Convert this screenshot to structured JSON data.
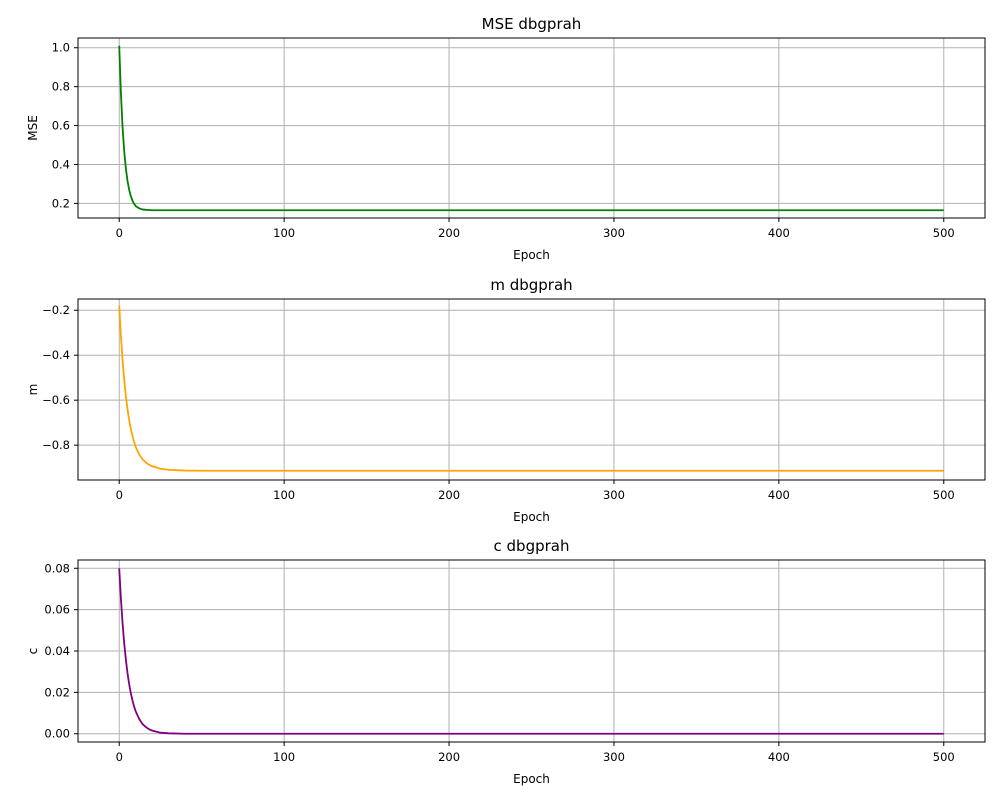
{
  "chart_data": [
    {
      "type": "line",
      "title": "MSE dbgprah",
      "xlabel": "Epoch",
      "ylabel": "MSE",
      "xlim": [
        -25,
        525
      ],
      "ylim": [
        0.125,
        1.05
      ],
      "xticks": [
        0,
        100,
        200,
        300,
        400,
        500
      ],
      "xtick_labels": [
        "0",
        "100",
        "200",
        "300",
        "400",
        "500"
      ],
      "yticks": [
        0.2,
        0.4,
        0.6,
        0.8,
        1.0
      ],
      "ytick_labels": [
        "0.2",
        "0.4",
        "0.6",
        "0.8",
        "1.0"
      ],
      "grid": true,
      "series": [
        {
          "color": "#008000",
          "x": [
            0,
            1,
            2,
            3,
            4,
            5,
            6,
            7,
            8,
            9,
            10,
            12,
            14,
            16,
            18,
            20,
            25,
            30,
            40,
            50,
            75,
            100,
            150,
            200,
            250,
            300,
            350,
            400,
            450,
            500
          ],
          "y": [
            1.01,
            0.77,
            0.595,
            0.47,
            0.381,
            0.317,
            0.271,
            0.238,
            0.215,
            0.198,
            0.186,
            0.175,
            0.169,
            0.167,
            0.166,
            0.165,
            0.165,
            0.165,
            0.165,
            0.165,
            0.165,
            0.165,
            0.165,
            0.165,
            0.165,
            0.165,
            0.165,
            0.165,
            0.165,
            0.165
          ]
        }
      ]
    },
    {
      "type": "line",
      "title": "m dbgprah",
      "xlabel": "Epoch",
      "ylabel": "m",
      "xlim": [
        -25,
        525
      ],
      "ylim": [
        -0.955,
        -0.15
      ],
      "xticks": [
        0,
        100,
        200,
        300,
        400,
        500
      ],
      "xtick_labels": [
        "0",
        "100",
        "200",
        "300",
        "400",
        "500"
      ],
      "yticks": [
        -0.8,
        -0.6,
        -0.4,
        -0.2
      ],
      "ytick_labels": [
        "−0.8",
        "−0.6",
        "−0.4",
        "−0.2"
      ],
      "grid": true,
      "series": [
        {
          "color": "#ffa500",
          "x": [
            0,
            1,
            2,
            3,
            4,
            5,
            6,
            7,
            8,
            9,
            10,
            12,
            14,
            16,
            18,
            20,
            25,
            30,
            40,
            50,
            75,
            100,
            150,
            200,
            250,
            300,
            350,
            400,
            450,
            500
          ],
          "y": [
            -0.18,
            -0.312,
            -0.42,
            -0.508,
            -0.58,
            -0.639,
            -0.687,
            -0.727,
            -0.759,
            -0.786,
            -0.808,
            -0.84,
            -0.862,
            -0.876,
            -0.887,
            -0.894,
            -0.905,
            -0.91,
            -0.913,
            -0.914,
            -0.914,
            -0.914,
            -0.914,
            -0.914,
            -0.914,
            -0.914,
            -0.914,
            -0.914,
            -0.914,
            -0.914
          ]
        }
      ]
    },
    {
      "type": "line",
      "title": "c dbgprah",
      "xlabel": "Epoch",
      "ylabel": "c",
      "xlim": [
        -25,
        525
      ],
      "ylim": [
        -0.004,
        0.084
      ],
      "xticks": [
        0,
        100,
        200,
        300,
        400,
        500
      ],
      "xtick_labels": [
        "0",
        "100",
        "200",
        "300",
        "400",
        "500"
      ],
      "yticks": [
        0.0,
        0.02,
        0.04,
        0.06,
        0.08
      ],
      "ytick_labels": [
        "0.00",
        "0.02",
        "0.04",
        "0.06",
        "0.08"
      ],
      "grid": true,
      "series": [
        {
          "color": "#800080",
          "x": [
            0,
            1,
            2,
            3,
            4,
            5,
            6,
            7,
            8,
            9,
            10,
            12,
            14,
            16,
            18,
            20,
            25,
            30,
            40,
            50,
            75,
            100,
            150,
            200,
            250,
            300,
            350,
            400,
            450,
            500
          ],
          "y": [
            0.08,
            0.0655,
            0.0536,
            0.0439,
            0.036,
            0.0294,
            0.0241,
            0.0197,
            0.0162,
            0.0132,
            0.0108,
            0.0073,
            0.0048,
            0.0033,
            0.0022,
            0.0015,
            0.0005,
            0.0002,
            0.0,
            0.0,
            0.0,
            0.0,
            0.0,
            0.0,
            0.0,
            0.0,
            0.0,
            0.0,
            0.0,
            0.0
          ]
        }
      ]
    }
  ]
}
